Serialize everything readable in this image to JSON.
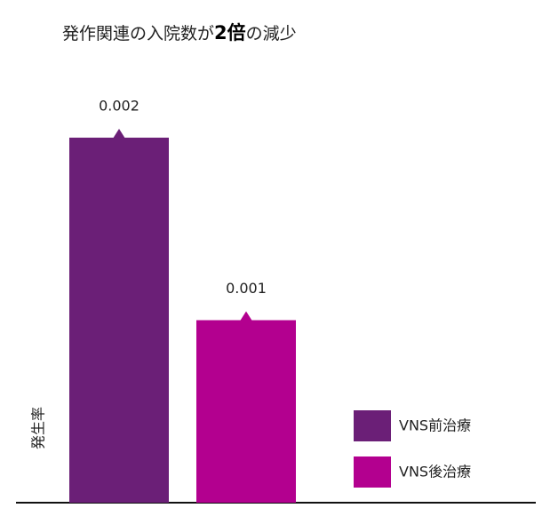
{
  "chart_data": {
    "type": "bar",
    "title": [
      "発作関連の入院数が",
      "2倍",
      "の減少"
    ],
    "y_label": "発生率",
    "series": [
      {
        "name": "VNS前治療",
        "color": "#6b1f77",
        "values": [
          0.002
        ]
      },
      {
        "name": "VNS後治療",
        "color": "#b3008f",
        "values": [
          0.001
        ]
      }
    ],
    "legend": "lower right"
  }
}
